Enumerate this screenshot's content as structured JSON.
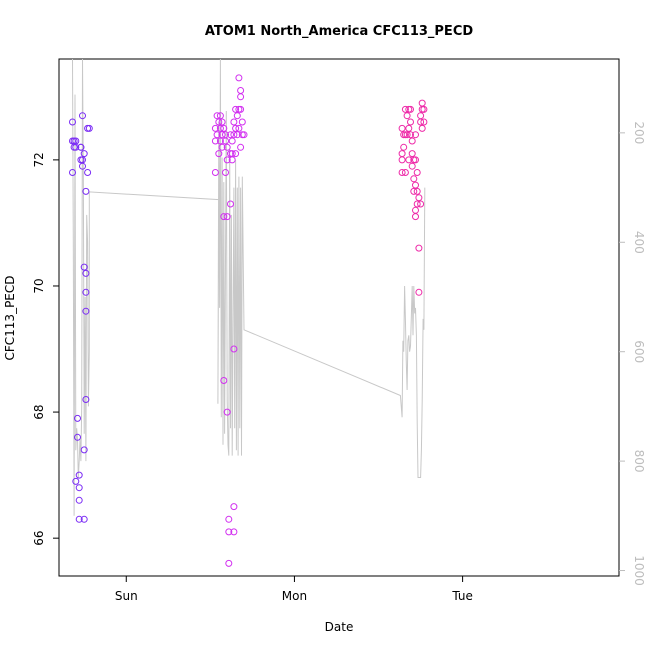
{
  "chart_data": {
    "type": "scatter",
    "title": "ATOM1 North_America CFC113_PECD",
    "xlabel": "Date",
    "ylabel": "CFC113_PECD",
    "x_ticks": [
      "Sun",
      "Mon",
      "Tue"
    ],
    "x_tick_days": [
      1,
      2,
      3
    ],
    "xlim_days": [
      0.6,
      3.93
    ],
    "ylim": [
      65.4,
      73.6
    ],
    "y_ticks": [
      66,
      68,
      70,
      72
    ],
    "y2_ticks": [
      200,
      400,
      600,
      800,
      1000
    ],
    "y2lim": [
      1010,
      65
    ],
    "grid": false,
    "colors": {
      "sun_points": "#7b2cf5",
      "mon_points": "#d22ff0",
      "tue_points": "#ee2aa8",
      "pressure_line": "#c8c8c8",
      "right_axis": "#bdbdbd"
    },
    "series": [
      {
        "values": [
          [
            0.68,
            72.3
          ],
          [
            0.68,
            72.6
          ],
          [
            0.68,
            71.8
          ],
          [
            0.69,
            72.3
          ],
          [
            0.69,
            72.2
          ],
          [
            0.7,
            72.3
          ],
          [
            0.7,
            72.2
          ],
          [
            0.7,
            66.9
          ],
          [
            0.71,
            67.9
          ],
          [
            0.71,
            67.6
          ],
          [
            0.72,
            67.0
          ],
          [
            0.72,
            66.8
          ],
          [
            0.72,
            66.6
          ],
          [
            0.72,
            66.3
          ],
          [
            0.73,
            72.2
          ],
          [
            0.73,
            72.2
          ],
          [
            0.73,
            72.0
          ],
          [
            0.74,
            72.7
          ],
          [
            0.74,
            72.0
          ],
          [
            0.74,
            71.9
          ],
          [
            0.75,
            72.1
          ],
          [
            0.75,
            67.4
          ],
          [
            0.75,
            66.3
          ],
          [
            0.75,
            70.3
          ],
          [
            0.76,
            69.9
          ],
          [
            0.76,
            69.6
          ],
          [
            0.76,
            70.2
          ],
          [
            0.76,
            68.2
          ],
          [
            0.76,
            71.5
          ],
          [
            0.77,
            71.8
          ],
          [
            0.77,
            72.5
          ],
          [
            0.78,
            72.5
          ]
        ]
      },
      {
        "values": [
          [
            1.53,
            71.8
          ],
          [
            1.53,
            72.3
          ],
          [
            1.53,
            72.5
          ],
          [
            1.54,
            72.7
          ],
          [
            1.54,
            72.4
          ],
          [
            1.55,
            72.6
          ],
          [
            1.55,
            72.1
          ],
          [
            1.56,
            72.3
          ],
          [
            1.56,
            72.7
          ],
          [
            1.56,
            72.5
          ],
          [
            1.57,
            72.6
          ],
          [
            1.57,
            72.4
          ],
          [
            1.57,
            72.2
          ],
          [
            1.58,
            72.5
          ],
          [
            1.58,
            71.1
          ],
          [
            1.58,
            68.5
          ],
          [
            1.59,
            72.3
          ],
          [
            1.59,
            72.4
          ],
          [
            1.59,
            71.8
          ],
          [
            1.6,
            72.0
          ],
          [
            1.6,
            72.2
          ],
          [
            1.6,
            71.1
          ],
          [
            1.6,
            68.0
          ],
          [
            1.61,
            66.3
          ],
          [
            1.61,
            66.1
          ],
          [
            1.61,
            65.6
          ],
          [
            1.62,
            72.4
          ],
          [
            1.62,
            72.1
          ],
          [
            1.62,
            71.3
          ],
          [
            1.63,
            72.3
          ],
          [
            1.63,
            72.1
          ],
          [
            1.63,
            72.0
          ],
          [
            1.64,
            72.4
          ],
          [
            1.64,
            72.6
          ],
          [
            1.64,
            69.0
          ],
          [
            1.64,
            66.5
          ],
          [
            1.64,
            66.1
          ],
          [
            1.65,
            72.8
          ],
          [
            1.65,
            72.5
          ],
          [
            1.65,
            72.1
          ],
          [
            1.66,
            72.7
          ],
          [
            1.66,
            72.4
          ],
          [
            1.67,
            72.5
          ],
          [
            1.67,
            72.8
          ],
          [
            1.67,
            73.3
          ],
          [
            1.68,
            73.1
          ],
          [
            1.68,
            73.0
          ],
          [
            1.68,
            72.8
          ],
          [
            1.68,
            72.2
          ],
          [
            1.69,
            72.6
          ],
          [
            1.69,
            72.4
          ],
          [
            1.7,
            72.4
          ]
        ]
      },
      {
        "values": [
          [
            2.64,
            72.5
          ],
          [
            2.64,
            72.1
          ],
          [
            2.64,
            72.0
          ],
          [
            2.64,
            71.8
          ],
          [
            2.65,
            72.4
          ],
          [
            2.65,
            72.2
          ],
          [
            2.66,
            72.8
          ],
          [
            2.66,
            72.4
          ],
          [
            2.66,
            71.8
          ],
          [
            2.67,
            72.7
          ],
          [
            2.67,
            72.4
          ],
          [
            2.68,
            72.8
          ],
          [
            2.68,
            72.5
          ],
          [
            2.68,
            72.0
          ],
          [
            2.69,
            72.8
          ],
          [
            2.69,
            72.6
          ],
          [
            2.69,
            72.4
          ],
          [
            2.7,
            72.3
          ],
          [
            2.7,
            72.1
          ],
          [
            2.7,
            71.9
          ],
          [
            2.71,
            71.7
          ],
          [
            2.71,
            72.0
          ],
          [
            2.71,
            71.5
          ],
          [
            2.72,
            72.4
          ],
          [
            2.72,
            72.0
          ],
          [
            2.72,
            71.6
          ],
          [
            2.72,
            71.2
          ],
          [
            2.72,
            71.1
          ],
          [
            2.73,
            71.5
          ],
          [
            2.73,
            71.8
          ],
          [
            2.73,
            71.3
          ],
          [
            2.74,
            71.4
          ],
          [
            2.74,
            70.6
          ],
          [
            2.74,
            69.9
          ],
          [
            2.75,
            71.3
          ],
          [
            2.75,
            72.6
          ],
          [
            2.75,
            72.7
          ],
          [
            2.76,
            72.9
          ],
          [
            2.76,
            72.8
          ],
          [
            2.76,
            72.5
          ],
          [
            2.77,
            72.8
          ],
          [
            2.77,
            72.6
          ]
        ]
      }
    ],
    "pressure_line": [
      [
        0.68,
        65
      ],
      [
        0.685,
        400
      ],
      [
        0.69,
        900
      ],
      [
        0.695,
        130
      ],
      [
        0.7,
        780
      ],
      [
        0.705,
        740
      ],
      [
        0.71,
        760
      ],
      [
        0.715,
        830
      ],
      [
        0.72,
        800
      ],
      [
        0.725,
        760
      ],
      [
        0.73,
        800
      ],
      [
        0.735,
        700
      ],
      [
        0.74,
        65
      ],
      [
        0.745,
        300
      ],
      [
        0.75,
        750
      ],
      [
        0.755,
        500
      ],
      [
        0.76,
        800
      ],
      [
        0.765,
        350
      ],
      [
        0.77,
        400
      ],
      [
        0.775,
        700
      ],
      [
        0.78,
        600
      ],
      [
        0.78,
        308
      ],
      [
        1.55,
        322
      ],
      [
        1.545,
        695
      ],
      [
        1.55,
        180
      ],
      [
        1.555,
        520
      ],
      [
        1.56,
        65
      ],
      [
        1.565,
        720
      ],
      [
        1.57,
        245
      ],
      [
        1.575,
        770
      ],
      [
        1.58,
        290
      ],
      [
        1.585,
        750
      ],
      [
        1.59,
        430
      ],
      [
        1.595,
        160
      ],
      [
        1.6,
        690
      ],
      [
        1.605,
        770
      ],
      [
        1.61,
        790
      ],
      [
        1.615,
        230
      ],
      [
        1.62,
        740
      ],
      [
        1.625,
        350
      ],
      [
        1.63,
        790
      ],
      [
        1.64,
        300
      ],
      [
        1.645,
        740
      ],
      [
        1.65,
        250
      ],
      [
        1.655,
        780
      ],
      [
        1.66,
        300
      ],
      [
        1.665,
        790
      ],
      [
        1.67,
        280
      ],
      [
        1.675,
        740
      ],
      [
        1.68,
        300
      ],
      [
        1.685,
        790
      ],
      [
        1.69,
        280
      ],
      [
        1.7,
        560
      ],
      [
        2.63,
        680
      ],
      [
        2.64,
        720
      ],
      [
        2.645,
        580
      ],
      [
        2.65,
        600
      ],
      [
        2.655,
        480
      ],
      [
        2.66,
        540
      ],
      [
        2.665,
        620
      ],
      [
        2.67,
        670
      ],
      [
        2.675,
        580
      ],
      [
        2.68,
        570
      ],
      [
        2.685,
        600
      ],
      [
        2.69,
        590
      ],
      [
        2.7,
        480
      ],
      [
        2.705,
        570
      ],
      [
        2.71,
        480
      ],
      [
        2.715,
        530
      ],
      [
        2.72,
        520
      ],
      [
        2.725,
        570
      ],
      [
        2.73,
        730
      ],
      [
        2.735,
        830
      ],
      [
        2.75,
        830
      ],
      [
        2.755,
        780
      ],
      [
        2.76,
        690
      ],
      [
        2.765,
        540
      ],
      [
        2.77,
        560
      ],
      [
        2.775,
        300
      ]
    ]
  }
}
